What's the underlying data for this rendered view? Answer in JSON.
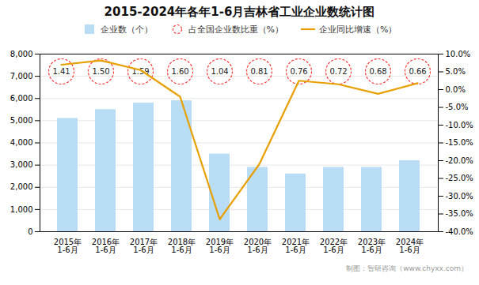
{
  "chart_data": {
    "type": "bar",
    "title": "2015-2024年各年1-6月吉林省工业企业数统计图",
    "caption": "制图：智研咨询（www.chyxx.com）",
    "categories": [
      "2015年\n1-6月",
      "2016年\n1-6月",
      "2017年\n1-6月",
      "2018年\n1-6月",
      "2019年\n1-6月",
      "2020年\n1-6月",
      "2021年\n1-6月",
      "2022年\n1-6月",
      "2023年\n1-6月",
      "2024年\n1-6月"
    ],
    "series": [
      {
        "name": "企业数（个）",
        "type": "bar",
        "color": "#b8ddf5",
        "values": [
          5100,
          5500,
          5800,
          5900,
          3500,
          2900,
          2600,
          2900,
          2900,
          3200
        ]
      },
      {
        "name": "占全国企业数比重（%）",
        "type": "label",
        "marker": "circle",
        "line_style": "dashed",
        "color": "#FF3333",
        "values": [
          1.41,
          1.5,
          1.59,
          1.6,
          1.04,
          0.81,
          0.76,
          0.72,
          0.68,
          0.66
        ],
        "value_labels": [
          "1.41",
          "1.50",
          "1.59",
          "1.60",
          "1.04",
          "0.81",
          "0.76",
          "0.72",
          "0.68",
          "0.66"
        ],
        "data_labels": true
      },
      {
        "name": "企业同比增速（%）",
        "type": "line",
        "color": "#E8A000",
        "axis": "y2",
        "values": [
          7.0,
          8.2,
          5.5,
          -2.0,
          -36.5,
          -21.0,
          2.5,
          1.5,
          -1.2,
          1.8
        ]
      }
    ],
    "ylim": [
      0,
      8000
    ],
    "yticks": [
      0,
      {
        "value": 1000,
        "label": "1,000"
      },
      {
        "value": 2000,
        "label": "2,000"
      },
      {
        "value": 3000,
        "label": "3,000"
      },
      {
        "value": 4000,
        "label": "4,000"
      },
      {
        "value": 5000,
        "label": "5,000"
      },
      {
        "value": 6000,
        "label": "6,000"
      },
      {
        "value": 7000,
        "label": "7,000"
      },
      {
        "value": 8000,
        "label": "8,000"
      }
    ],
    "y2lim": [
      -40.0,
      10.0
    ],
    "y2ticks": [
      {
        "value": -40,
        "label": "-40.0%"
      },
      {
        "value": -35,
        "label": "-35.0%"
      },
      {
        "value": -30,
        "label": "-30.0%"
      },
      {
        "value": -25,
        "label": "-25.0%"
      },
      {
        "value": -20,
        "label": "-20.0%"
      },
      {
        "value": -15,
        "label": "-15.0%"
      },
      {
        "value": -10,
        "label": "-10.0%"
      },
      {
        "value": -5,
        "label": "-5.0%"
      },
      {
        "value": 0,
        "label": "0.0%"
      },
      {
        "value": 5,
        "label": "5.0%"
      },
      {
        "value": 10,
        "label": "10.0%"
      }
    ],
    "grid": true,
    "legend": "top"
  }
}
